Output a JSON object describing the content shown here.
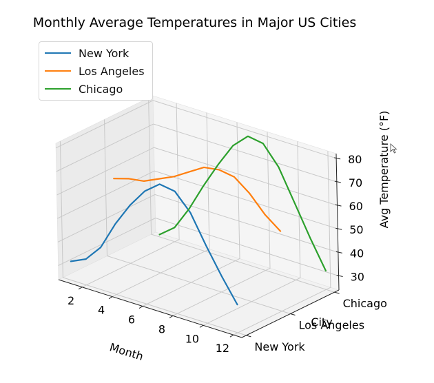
{
  "chart_data": {
    "type": "line",
    "title": "Monthly Average Temperatures in Major US Cities",
    "xlabel": "Month",
    "ylabel": "City",
    "zlabel": "Avg Temperature (°F)",
    "x": [
      1,
      2,
      3,
      4,
      5,
      6,
      7,
      8,
      9,
      10,
      11,
      12
    ],
    "x_ticks": [
      "2",
      "4",
      "6",
      "8",
      "10",
      "12"
    ],
    "y_ticks": [
      "New York",
      "Los Angeles",
      "Chicago"
    ],
    "z_ticks": [
      "30",
      "40",
      "50",
      "60",
      "70",
      "80"
    ],
    "zlim": [
      24,
      82
    ],
    "grid": true,
    "legend_position": "top-left",
    "series": [
      {
        "name": "New York",
        "city_index": 0,
        "color": "#1f77b4",
        "values": [
          32,
          35,
          42,
          54,
          64,
          72,
          77,
          76,
          69,
          57,
          46,
          36
        ]
      },
      {
        "name": "Los Angeles",
        "city_index": 1,
        "color": "#ff7f0e",
        "values": [
          58,
          60,
          61,
          64,
          67,
          71,
          75,
          76,
          75,
          70,
          63,
          58
        ]
      },
      {
        "name": "Chicago",
        "city_index": 2,
        "color": "#2ca02c",
        "values": [
          25,
          30,
          40,
          52,
          63,
          73,
          79,
          78,
          70,
          57,
          44,
          32
        ]
      }
    ]
  }
}
